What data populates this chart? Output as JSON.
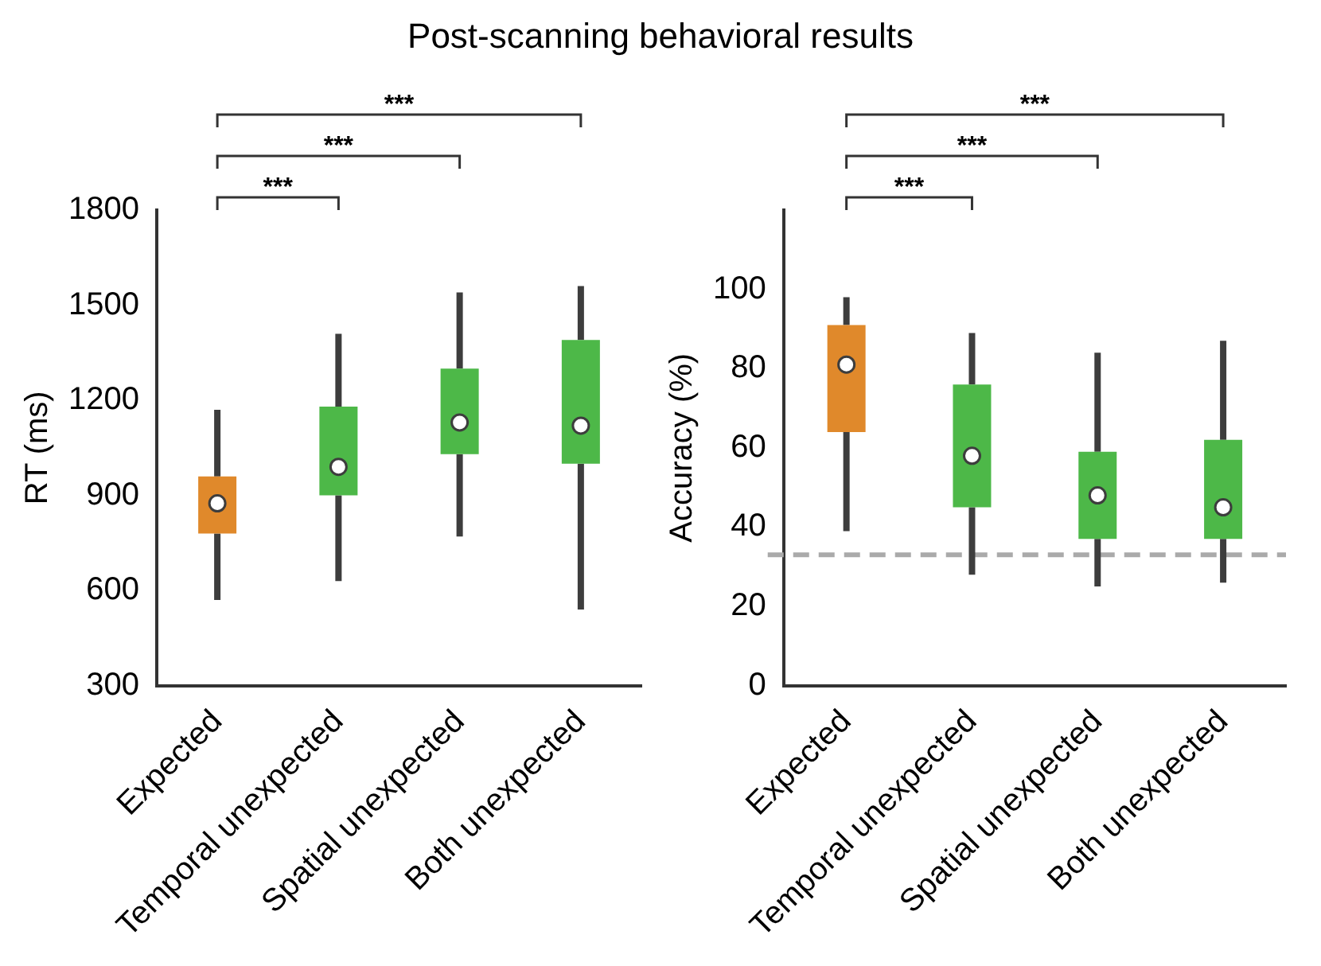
{
  "chart_data": [
    {
      "type": "box",
      "title": "Post-scanning behavioral results",
      "categories": [
        "Expected",
        "Temporal unexpected",
        "Spatial unexpected",
        "Both unexpected"
      ],
      "ylabel": "RT (ms)",
      "ylim": [
        300,
        1800
      ],
      "yticks": [
        300,
        600,
        900,
        1200,
        1500,
        1800
      ],
      "colors": [
        "#e0892b",
        "#4db848",
        "#4db848",
        "#4db848"
      ],
      "boxes": [
        {
          "low": 570,
          "q1": 780,
          "median": 875,
          "q3": 960,
          "high": 1170
        },
        {
          "low": 630,
          "q1": 900,
          "median": 990,
          "q3": 1180,
          "high": 1410
        },
        {
          "low": 770,
          "q1": 1030,
          "median": 1130,
          "q3": 1300,
          "high": 1540
        },
        {
          "low": 540,
          "q1": 1000,
          "median": 1120,
          "q3": 1390,
          "high": 1560
        }
      ],
      "annotations": [
        "***",
        "***",
        "***"
      ]
    },
    {
      "type": "box",
      "categories": [
        "Expected",
        "Temporal unexpected",
        "Spatial unexpected",
        "Both unexpected"
      ],
      "ylabel": "Accuracy (%)",
      "ylim": [
        0,
        120
      ],
      "yticks": [
        0,
        20,
        40,
        60,
        80,
        100
      ],
      "colors": [
        "#e0892b",
        "#4db848",
        "#4db848",
        "#4db848"
      ],
      "boxes": [
        {
          "low": 39,
          "q1": 64,
          "median": 81,
          "q3": 91,
          "high": 98
        },
        {
          "low": 28,
          "q1": 45,
          "median": 58,
          "q3": 76,
          "high": 89
        },
        {
          "low": 25,
          "q1": 37,
          "median": 48,
          "q3": 59,
          "high": 84
        },
        {
          "low": 26,
          "q1": 37,
          "median": 45,
          "q3": 62,
          "high": 87
        }
      ],
      "ref_lines": [
        {
          "axis": "y",
          "value": 33,
          "color": "#aaaaaa",
          "line_style": "dashed"
        }
      ],
      "annotations": [
        "***",
        "***",
        "***"
      ]
    }
  ]
}
